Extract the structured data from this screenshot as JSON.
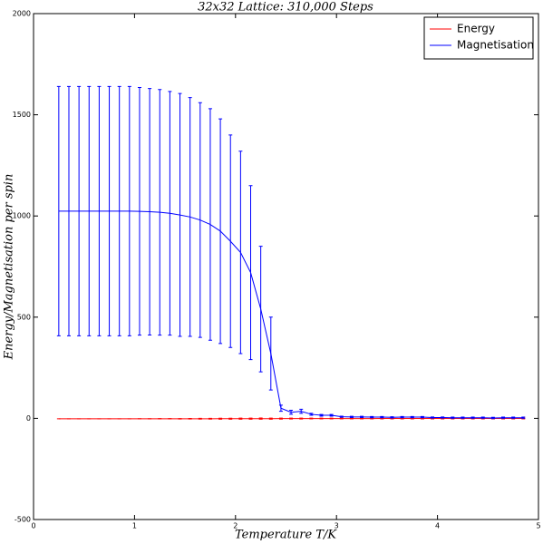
{
  "chart_data": {
    "type": "line",
    "title": "32x32 Lattice: 310,000 Steps",
    "xlabel": "Temperature T/K",
    "ylabel": "Energy/Magnetisation per spin",
    "x": [
      0.25,
      0.35,
      0.45,
      0.55,
      0.65,
      0.75,
      0.85,
      0.95,
      1.05,
      1.15,
      1.25,
      1.35,
      1.45,
      1.55,
      1.65,
      1.75,
      1.85,
      1.95,
      2.05,
      2.15,
      2.25,
      2.35,
      2.45,
      2.55,
      2.65,
      2.75,
      2.85,
      2.95,
      3.05,
      3.15,
      3.25,
      3.35,
      3.45,
      3.55,
      3.65,
      3.75,
      3.85,
      3.95,
      4.05,
      4.15,
      4.25,
      4.35,
      4.45,
      4.55,
      4.65,
      4.75,
      4.85
    ],
    "series": [
      {
        "name": "Energy",
        "color": "#ff0000",
        "values": [
          -2.0,
          -2.0,
          -2.0,
          -2.0,
          -2.0,
          -2.0,
          -2.0,
          -2.0,
          -1.99,
          -1.98,
          -1.97,
          -1.96,
          -1.95,
          -1.93,
          -1.9,
          -1.87,
          -1.82,
          -1.75,
          -1.67,
          -1.57,
          -1.45,
          -1.3,
          -1.2,
          -1.1,
          -1.0,
          -0.95,
          -0.9,
          -0.85,
          -0.8,
          -0.78,
          -0.76,
          -0.74,
          -0.72,
          -0.7,
          -0.68,
          -0.66,
          -0.64,
          -0.62,
          -0.6,
          -0.59,
          -0.58,
          -0.57,
          -0.56,
          -0.55,
          -0.53,
          -0.52,
          -0.5
        ],
        "errors": [
          0.05,
          0.05,
          0.05,
          0.05,
          0.05,
          0.05,
          0.05,
          0.05,
          0.3,
          0.5,
          0.8,
          1,
          1.2,
          1.5,
          1.8,
          2,
          2.3,
          2.6,
          2.8,
          3,
          3,
          2.8,
          2.5,
          2.3,
          2.2,
          2,
          2,
          2,
          2,
          2,
          2,
          2,
          2,
          2,
          2,
          2,
          2,
          2,
          2,
          2,
          2,
          2,
          2,
          2,
          2,
          2,
          2
        ]
      },
      {
        "name": "Magnetisation",
        "color": "#0000ff",
        "values": [
          1024,
          1024,
          1024,
          1024,
          1024,
          1024,
          1024,
          1024,
          1023,
          1021,
          1018,
          1013,
          1005,
          995,
          980,
          958,
          925,
          875,
          820,
          720,
          540,
          320,
          50,
          30,
          35,
          20,
          15,
          15,
          8,
          7,
          7,
          6,
          6,
          5,
          6,
          6,
          6,
          4,
          4,
          3,
          3,
          3,
          3,
          2,
          3,
          3,
          3
        ],
        "errors": [
          616,
          616,
          616,
          616,
          616,
          616,
          616,
          616,
          612,
          609,
          607,
          602,
          600,
          590,
          580,
          572,
          555,
          525,
          500,
          430,
          310,
          180,
          15,
          10,
          10,
          5,
          4,
          4,
          3,
          3,
          3,
          3,
          3,
          3,
          3,
          3,
          3,
          3,
          3,
          3,
          3,
          3,
          3,
          3,
          3,
          3,
          3
        ]
      }
    ],
    "xlim": [
      0,
      5
    ],
    "xticks": [
      0,
      1,
      2,
      3,
      4,
      5
    ],
    "ylim": [
      -500,
      2000
    ],
    "yticks": [
      -500,
      0,
      500,
      1000,
      1500,
      2000
    ],
    "legend": "upper right"
  }
}
